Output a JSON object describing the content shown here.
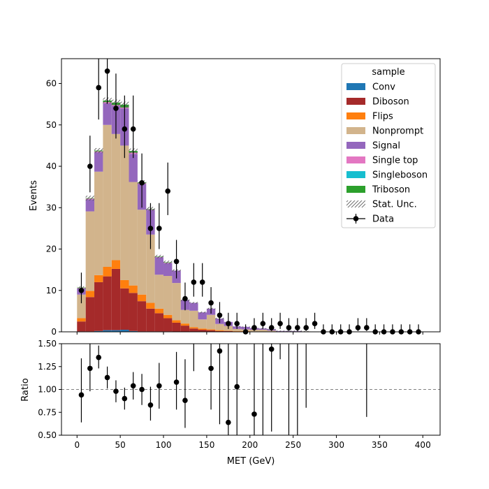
{
  "chart_data": {
    "type": "bar",
    "stacked": true,
    "xlabel": "MET (GeV)",
    "upper": {
      "ylabel": "Events",
      "ylim": [
        0,
        66
      ],
      "yticks": [
        0,
        10,
        20,
        30,
        40,
        50,
        60
      ]
    },
    "lower": {
      "ylabel": "Ratio",
      "ylim": [
        0.5,
        1.5
      ],
      "yticks": [
        "0.50",
        "0.75",
        "1.00",
        "1.25",
        "1.50"
      ],
      "reference_line": 1.0
    },
    "xlim": [
      -18,
      420
    ],
    "xticks": [
      0,
      50,
      100,
      150,
      200,
      250,
      300,
      350,
      400
    ],
    "bin_edges": [
      0,
      10,
      20,
      30,
      40,
      50,
      60,
      70,
      80,
      90,
      100,
      110,
      120,
      130,
      140,
      150,
      160,
      170,
      180,
      190,
      200,
      210,
      220,
      230,
      240,
      250,
      260,
      270,
      280,
      290,
      300,
      310,
      320,
      330,
      340,
      350,
      360,
      370,
      380,
      390,
      400
    ],
    "legend": {
      "title": "sample",
      "position": "top-right",
      "entries": [
        "Conv",
        "Diboson",
        "Flips",
        "Nonprompt",
        "Signal",
        "Single top",
        "Singleboson",
        "Triboson",
        "Stat. Unc.",
        "Data"
      ]
    },
    "series": [
      {
        "name": "Conv",
        "color": "#1f77b4",
        "values": [
          0.1,
          0.1,
          0.2,
          0.4,
          0.4,
          0.5,
          0.2,
          0.1,
          0.1,
          0.1,
          0.1,
          0,
          0,
          0,
          0,
          0,
          0,
          0,
          0,
          0,
          0,
          0,
          0,
          0,
          0,
          0,
          0,
          0,
          0,
          0,
          0,
          0,
          0,
          0,
          0,
          0,
          0,
          0,
          0,
          0
        ]
      },
      {
        "name": "Diboson",
        "color": "#a52a2a",
        "values": [
          2.4,
          8.3,
          11.8,
          13.0,
          14.8,
          10.0,
          9.2,
          7.3,
          5.5,
          4.4,
          3.2,
          2.2,
          1.5,
          0.8,
          0.5,
          0.4,
          0.2,
          0.2,
          0.1,
          0.1,
          0.1,
          0,
          0,
          0,
          0,
          0,
          0,
          0,
          0,
          0,
          0,
          0,
          0,
          0,
          0,
          0,
          0,
          0,
          0,
          0
        ]
      },
      {
        "name": "Flips",
        "color": "#ff7f0e",
        "values": [
          0.8,
          1.5,
          1.7,
          2.3,
          2.1,
          2.0,
          1.8,
          1.6,
          1.4,
          1.1,
          0.8,
          0.6,
          0.5,
          0.3,
          0.3,
          0.2,
          0.2,
          0.1,
          0.1,
          0.1,
          0,
          0,
          0,
          0,
          0,
          0,
          0,
          0,
          0,
          0,
          0,
          0,
          0,
          0,
          0,
          0,
          0,
          0,
          0,
          0
        ]
      },
      {
        "name": "Nonprompt",
        "color": "#d2b48c",
        "values": [
          5.7,
          19.2,
          25.0,
          34.3,
          30.5,
          32.5,
          25.0,
          20.5,
          16.5,
          8.2,
          9.4,
          9.0,
          3.3,
          4.0,
          2.2,
          3.5,
          1.5,
          1.1,
          0.5,
          0.4,
          0.4,
          0.5,
          0.3,
          0.1,
          0.1,
          0.1,
          0.1,
          0,
          0,
          0,
          0,
          0,
          0,
          0,
          0,
          0,
          0,
          0,
          0,
          0
        ]
      },
      {
        "name": "Signal",
        "color": "#9467bd",
        "values": [
          1.5,
          2.9,
          4.7,
          5.2,
          6.8,
          9.0,
          6.8,
          6.2,
          6.0,
          4.2,
          3.1,
          3.0,
          2.4,
          1.9,
          1.7,
          1.5,
          1.3,
          1.0,
          0.6,
          0.6,
          0.4,
          0.3,
          0.3,
          0.1,
          0.1,
          0.1,
          0,
          0,
          0,
          0,
          0,
          0,
          0,
          0,
          0,
          0,
          0,
          0,
          0,
          0
        ]
      },
      {
        "name": "Single top",
        "color": "#e377c2",
        "values": [
          0.1,
          0.2,
          0.2,
          0.3,
          0.2,
          0.2,
          0.3,
          0.2,
          0.1,
          0.1,
          0.1,
          0,
          0,
          0,
          0,
          0,
          0,
          0,
          0,
          0,
          0,
          0,
          0,
          0,
          0,
          0,
          0,
          0,
          0,
          0,
          0,
          0,
          0,
          0,
          0,
          0,
          0,
          0,
          0,
          0
        ]
      },
      {
        "name": "Singleboson",
        "color": "#17becf",
        "values": [
          0,
          0,
          0,
          0,
          0,
          0,
          0,
          0,
          0,
          0,
          0,
          0,
          0,
          0,
          0,
          0,
          0,
          0,
          0,
          0,
          0,
          0,
          0,
          0,
          0,
          0,
          0,
          0,
          0,
          0,
          0,
          0,
          0,
          0,
          0,
          0,
          0,
          0,
          0,
          0
        ]
      },
      {
        "name": "Triboson",
        "color": "#2ca02c",
        "values": [
          0.1,
          0.1,
          0.2,
          0.4,
          0.6,
          0.7,
          0.4,
          0.2,
          0.1,
          0.1,
          0.1,
          0,
          0,
          0,
          0,
          0,
          0,
          0,
          0,
          0,
          0,
          0,
          0,
          0,
          0,
          0,
          0,
          0,
          0,
          0,
          0,
          0,
          0,
          0,
          0,
          0,
          0,
          0,
          0,
          0
        ]
      }
    ],
    "stat_unc": [
      0.3,
      0.6,
      0.6,
      0.7,
      0.7,
      0.7,
      0.6,
      0.5,
      0.5,
      0.4,
      0.4,
      0.3,
      0.3,
      0.2,
      0.2,
      0.2,
      0.2,
      0.1,
      0.1,
      0.1,
      0.1,
      0.1,
      0.1,
      0.1,
      0.1,
      0.1,
      0.1,
      0,
      0,
      0,
      0,
      0,
      0,
      0,
      0,
      0,
      0,
      0,
      0,
      0
    ],
    "data": {
      "name": "Data",
      "x": [
        5,
        15,
        25,
        35,
        45,
        55,
        65,
        75,
        85,
        95,
        105,
        115,
        125,
        135,
        145,
        155,
        165,
        175,
        185,
        195,
        205,
        215,
        225,
        235,
        245,
        255,
        265,
        275,
        285,
        295,
        305,
        315,
        325,
        335,
        345,
        355,
        365,
        375,
        385,
        395
      ],
      "values": [
        10,
        40,
        59,
        63,
        54,
        49,
        49,
        36,
        25,
        25,
        34,
        17,
        8,
        12,
        12,
        7,
        4,
        2,
        2,
        0,
        1,
        2,
        1,
        2,
        1,
        1,
        1,
        2,
        0,
        0,
        0,
        0,
        1,
        1,
        0,
        0,
        0,
        0,
        0,
        0
      ],
      "errors_up": [
        4.3,
        7.4,
        8.7,
        9.0,
        8.4,
        8.1,
        8.1,
        7.1,
        6.1,
        6.1,
        6.9,
        5.2,
        3.9,
        4.6,
        4.6,
        3.8,
        3.2,
        2.6,
        2.6,
        1.8,
        2.3,
        2.6,
        2.3,
        2.6,
        2.3,
        2.3,
        2.3,
        2.6,
        1.8,
        1.8,
        1.8,
        1.8,
        2.3,
        2.3,
        1.8,
        1.8,
        1.8,
        1.8,
        1.8,
        1.8
      ],
      "errors_down": [
        3.1,
        6.3,
        7.7,
        7.9,
        7.3,
        7.0,
        7.0,
        6.0,
        5.0,
        5.0,
        5.8,
        4.1,
        2.8,
        3.5,
        3.5,
        2.6,
        1.9,
        1.3,
        1.3,
        0,
        0.8,
        1.3,
        0.8,
        1.3,
        0.8,
        0.8,
        0.8,
        1.3,
        0,
        0,
        0,
        0,
        0.8,
        0.8,
        0,
        0,
        0,
        0,
        0,
        0
      ]
    },
    "ratio": {
      "x": [
        5,
        15,
        25,
        35,
        45,
        55,
        65,
        75,
        85,
        95,
        115,
        125,
        155,
        165,
        175,
        185,
        205,
        225
      ],
      "values": [
        0.94,
        1.23,
        1.35,
        1.13,
        0.98,
        0.9,
        1.04,
        1.0,
        0.83,
        1.04,
        1.08,
        0.88,
        1.23,
        1.42,
        0.64,
        1.03,
        0.73,
        1.44
      ],
      "errors_up": [
        0.4,
        0.3,
        0.13,
        0.12,
        0.12,
        0.12,
        0.15,
        0.17,
        0.2,
        0.25,
        0.33,
        0.45,
        0.5,
        0.8,
        0.9,
        0.8,
        1.0,
        0.8
      ],
      "errors_down": [
        0.3,
        0.25,
        0.12,
        0.12,
        0.12,
        0.12,
        0.15,
        0.17,
        0.17,
        0.25,
        0.3,
        0.3,
        0.45,
        0.8,
        0.6,
        0.7,
        0.73,
        0.9
      ],
      "offscale_error_bars": [
        {
          "x": 135,
          "low": 1.2
        },
        {
          "x": 215,
          "low": 0.5
        },
        {
          "x": 235,
          "low": 1.33
        },
        {
          "x": 245,
          "low": 0.5
        },
        {
          "x": 255,
          "low": 0.5
        },
        {
          "x": 265,
          "low": 0.8
        },
        {
          "x": 335,
          "low": 0.7
        }
      ]
    }
  }
}
